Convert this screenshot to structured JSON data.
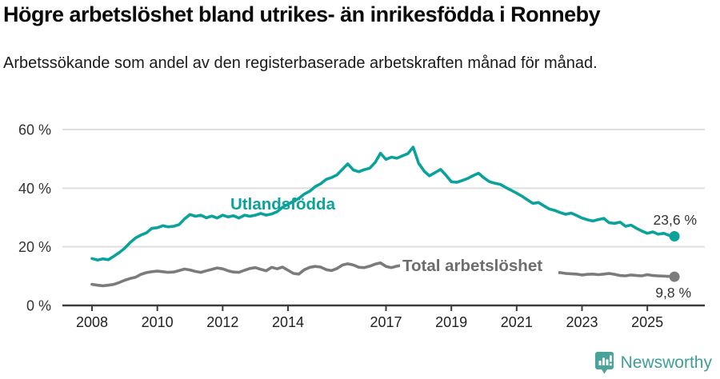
{
  "header": {
    "title": "Högre arbetslöshet bland utrikes- än inrikesfödda i Ronneby",
    "subtitle": "Arbetssökande som andel av den registerbaserade arbetskraften månad för månad."
  },
  "footer": {
    "brand": "Newsworthy",
    "brand_icon": "bar-chart-pin-icon",
    "brand_color": "#3f9e96"
  },
  "colors": {
    "foreign_born": "#0aa29a",
    "total": "#7b7b7b",
    "grid": "#dedede",
    "axis": "#3c3c3c"
  },
  "chart_data": {
    "type": "line",
    "title": "Högre arbetslöshet bland utrikes- än inrikesfödda i Ronneby",
    "subtitle": "Arbetssökande som andel av den registerbaserade arbetskraften månad för månad.",
    "xlabel": "",
    "ylabel": "",
    "grid": true,
    "legend_position": "inline-annotations",
    "ylim": [
      0,
      60
    ],
    "xlim": [
      2007.1,
      2026.75
    ],
    "yticks": [
      [
        0,
        "0 %"
      ],
      [
        20,
        "20 %"
      ],
      [
        40,
        "40 %"
      ],
      [
        60,
        "60 %"
      ]
    ],
    "xticks": [
      [
        2008,
        "2008"
      ],
      [
        2010,
        "2010"
      ],
      [
        2012,
        "2012"
      ],
      [
        2014,
        "2014"
      ],
      [
        2017,
        "2017"
      ],
      [
        2019,
        "2019"
      ],
      [
        2021,
        "2021"
      ],
      [
        2023,
        "2023"
      ],
      [
        2025,
        "2025"
      ]
    ],
    "series": [
      {
        "name": "Utlandsfödda",
        "color": "#0aa29a",
        "end_label": "23,6 %",
        "end_value": 23.6,
        "points": [
          [
            2008.0,
            16.0
          ],
          [
            2008.17,
            15.5
          ],
          [
            2008.33,
            15.9
          ],
          [
            2008.5,
            15.6
          ],
          [
            2008.67,
            16.8
          ],
          [
            2008.83,
            18.0
          ],
          [
            2009.0,
            19.5
          ],
          [
            2009.17,
            21.5
          ],
          [
            2009.33,
            23.0
          ],
          [
            2009.5,
            24.0
          ],
          [
            2009.67,
            24.8
          ],
          [
            2009.83,
            26.3
          ],
          [
            2010.0,
            26.5
          ],
          [
            2010.17,
            27.2
          ],
          [
            2010.33,
            26.8
          ],
          [
            2010.5,
            27.0
          ],
          [
            2010.67,
            27.6
          ],
          [
            2010.83,
            29.5
          ],
          [
            2011.0,
            31.0
          ],
          [
            2011.17,
            30.4
          ],
          [
            2011.33,
            30.8
          ],
          [
            2011.5,
            29.9
          ],
          [
            2011.67,
            30.5
          ],
          [
            2011.83,
            29.8
          ],
          [
            2012.0,
            30.8
          ],
          [
            2012.17,
            30.2
          ],
          [
            2012.33,
            30.6
          ],
          [
            2012.5,
            29.8
          ],
          [
            2012.67,
            30.8
          ],
          [
            2012.83,
            30.4
          ],
          [
            2013.0,
            30.8
          ],
          [
            2013.17,
            31.4
          ],
          [
            2013.33,
            30.8
          ],
          [
            2013.5,
            31.2
          ],
          [
            2013.67,
            32.0
          ],
          [
            2013.83,
            33.5
          ],
          [
            2014.0,
            34.5
          ],
          [
            2014.17,
            35.5
          ],
          [
            2014.33,
            36.5
          ],
          [
            2014.5,
            38.0
          ],
          [
            2014.67,
            39.0
          ],
          [
            2014.83,
            40.5
          ],
          [
            2015.0,
            41.5
          ],
          [
            2015.17,
            43.0
          ],
          [
            2015.33,
            43.6
          ],
          [
            2015.5,
            44.5
          ],
          [
            2015.67,
            46.5
          ],
          [
            2015.83,
            48.3
          ],
          [
            2016.0,
            46.2
          ],
          [
            2016.17,
            45.6
          ],
          [
            2016.33,
            46.3
          ],
          [
            2016.5,
            46.8
          ],
          [
            2016.67,
            48.8
          ],
          [
            2016.83,
            51.9
          ],
          [
            2017.0,
            49.8
          ],
          [
            2017.17,
            50.6
          ],
          [
            2017.33,
            50.2
          ],
          [
            2017.5,
            51.0
          ],
          [
            2017.67,
            51.8
          ],
          [
            2017.83,
            54.0
          ],
          [
            2018.0,
            48.5
          ],
          [
            2018.17,
            45.8
          ],
          [
            2018.33,
            44.2
          ],
          [
            2018.5,
            45.3
          ],
          [
            2018.67,
            46.4
          ],
          [
            2018.83,
            44.5
          ],
          [
            2019.0,
            42.2
          ],
          [
            2019.17,
            42.0
          ],
          [
            2019.33,
            42.6
          ],
          [
            2019.5,
            43.3
          ],
          [
            2019.67,
            44.3
          ],
          [
            2019.83,
            45.1
          ],
          [
            2020.0,
            43.5
          ],
          [
            2020.17,
            42.2
          ],
          [
            2020.33,
            41.7
          ],
          [
            2020.5,
            41.3
          ],
          [
            2020.67,
            40.2
          ],
          [
            2020.83,
            39.3
          ],
          [
            2021.0,
            38.3
          ],
          [
            2021.17,
            37.2
          ],
          [
            2021.33,
            36.0
          ],
          [
            2021.5,
            34.8
          ],
          [
            2021.67,
            35.1
          ],
          [
            2021.83,
            34.0
          ],
          [
            2022.0,
            32.9
          ],
          [
            2022.17,
            32.4
          ],
          [
            2022.33,
            31.7
          ],
          [
            2022.5,
            31.1
          ],
          [
            2022.67,
            31.5
          ],
          [
            2022.83,
            30.7
          ],
          [
            2023.0,
            29.8
          ],
          [
            2023.17,
            29.2
          ],
          [
            2023.33,
            28.8
          ],
          [
            2023.5,
            29.3
          ],
          [
            2023.67,
            29.7
          ],
          [
            2023.83,
            28.2
          ],
          [
            2024.0,
            28.0
          ],
          [
            2024.17,
            28.4
          ],
          [
            2024.33,
            27.0
          ],
          [
            2024.5,
            27.4
          ],
          [
            2024.67,
            26.3
          ],
          [
            2024.83,
            25.4
          ],
          [
            2025.0,
            24.6
          ],
          [
            2025.17,
            25.1
          ],
          [
            2025.33,
            24.3
          ],
          [
            2025.5,
            24.6
          ],
          [
            2025.67,
            23.9
          ],
          [
            2025.83,
            23.6
          ]
        ]
      },
      {
        "name": "Total arbetslöshet",
        "color": "#7b7b7b",
        "end_label": "9,8 %",
        "end_value": 9.8,
        "points": [
          [
            2008.0,
            7.2
          ],
          [
            2008.17,
            6.9
          ],
          [
            2008.33,
            6.7
          ],
          [
            2008.5,
            6.9
          ],
          [
            2008.67,
            7.2
          ],
          [
            2008.83,
            7.8
          ],
          [
            2009.0,
            8.6
          ],
          [
            2009.17,
            9.2
          ],
          [
            2009.33,
            9.6
          ],
          [
            2009.5,
            10.6
          ],
          [
            2009.67,
            11.2
          ],
          [
            2009.83,
            11.5
          ],
          [
            2010.0,
            11.7
          ],
          [
            2010.17,
            11.5
          ],
          [
            2010.33,
            11.3
          ],
          [
            2010.5,
            11.4
          ],
          [
            2010.67,
            11.9
          ],
          [
            2010.83,
            12.4
          ],
          [
            2011.0,
            12.1
          ],
          [
            2011.17,
            11.6
          ],
          [
            2011.33,
            11.3
          ],
          [
            2011.5,
            11.8
          ],
          [
            2011.67,
            12.3
          ],
          [
            2011.83,
            12.8
          ],
          [
            2012.0,
            12.5
          ],
          [
            2012.17,
            11.8
          ],
          [
            2012.33,
            11.4
          ],
          [
            2012.5,
            11.3
          ],
          [
            2012.67,
            12.0
          ],
          [
            2012.83,
            12.6
          ],
          [
            2013.0,
            12.9
          ],
          [
            2013.17,
            12.3
          ],
          [
            2013.33,
            11.8
          ],
          [
            2013.5,
            13.0
          ],
          [
            2013.67,
            12.5
          ],
          [
            2013.83,
            13.1
          ],
          [
            2014.0,
            12.0
          ],
          [
            2014.17,
            10.9
          ],
          [
            2014.33,
            10.7
          ],
          [
            2014.5,
            12.2
          ],
          [
            2014.67,
            13.0
          ],
          [
            2014.83,
            13.3
          ],
          [
            2015.0,
            13.1
          ],
          [
            2015.17,
            12.2
          ],
          [
            2015.33,
            11.9
          ],
          [
            2015.5,
            12.6
          ],
          [
            2015.67,
            13.8
          ],
          [
            2015.83,
            14.2
          ],
          [
            2016.0,
            13.8
          ],
          [
            2016.17,
            13.0
          ],
          [
            2016.33,
            12.9
          ],
          [
            2016.5,
            13.4
          ],
          [
            2016.67,
            14.1
          ],
          [
            2016.83,
            14.5
          ],
          [
            2017.0,
            13.3
          ],
          [
            2017.17,
            12.9
          ],
          [
            2017.33,
            13.4
          ],
          [
            2017.5,
            13.7
          ],
          [
            2017.67,
            14.0
          ],
          [
            2017.83,
            14.3
          ],
          [
            2018.0,
            13.5
          ],
          [
            2018.17,
            12.9
          ],
          [
            2018.33,
            12.6
          ],
          [
            2018.5,
            12.9
          ],
          [
            2018.67,
            13.3
          ],
          [
            2018.83,
            13.6
          ],
          [
            2019.0,
            12.9
          ],
          [
            2019.17,
            12.5
          ],
          [
            2019.33,
            12.3
          ],
          [
            2019.5,
            12.7
          ],
          [
            2019.67,
            13.1
          ],
          [
            2019.83,
            13.4
          ],
          [
            2020.0,
            13.2
          ],
          [
            2020.17,
            13.6
          ],
          [
            2020.33,
            14.0
          ],
          [
            2020.5,
            13.8
          ],
          [
            2020.67,
            13.5
          ],
          [
            2020.83,
            13.2
          ],
          [
            2021.0,
            12.9
          ],
          [
            2021.17,
            12.5
          ],
          [
            2021.33,
            12.2
          ],
          [
            2021.5,
            11.9
          ],
          [
            2021.67,
            11.9
          ],
          [
            2021.83,
            11.6
          ],
          [
            2022.0,
            11.3
          ],
          [
            2022.17,
            11.1
          ],
          [
            2022.33,
            11.2
          ],
          [
            2022.5,
            10.9
          ],
          [
            2022.67,
            10.8
          ],
          [
            2022.83,
            10.7
          ],
          [
            2023.0,
            10.4
          ],
          [
            2023.17,
            10.6
          ],
          [
            2023.33,
            10.7
          ],
          [
            2023.5,
            10.5
          ],
          [
            2023.67,
            10.7
          ],
          [
            2023.83,
            10.9
          ],
          [
            2024.0,
            10.6
          ],
          [
            2024.17,
            10.2
          ],
          [
            2024.33,
            10.1
          ],
          [
            2024.5,
            10.4
          ],
          [
            2024.67,
            10.2
          ],
          [
            2024.83,
            10.1
          ],
          [
            2025.0,
            10.5
          ],
          [
            2025.17,
            10.2
          ],
          [
            2025.33,
            10.1
          ],
          [
            2025.5,
            10.0
          ],
          [
            2025.67,
            9.9
          ],
          [
            2025.83,
            9.8
          ]
        ]
      }
    ]
  }
}
